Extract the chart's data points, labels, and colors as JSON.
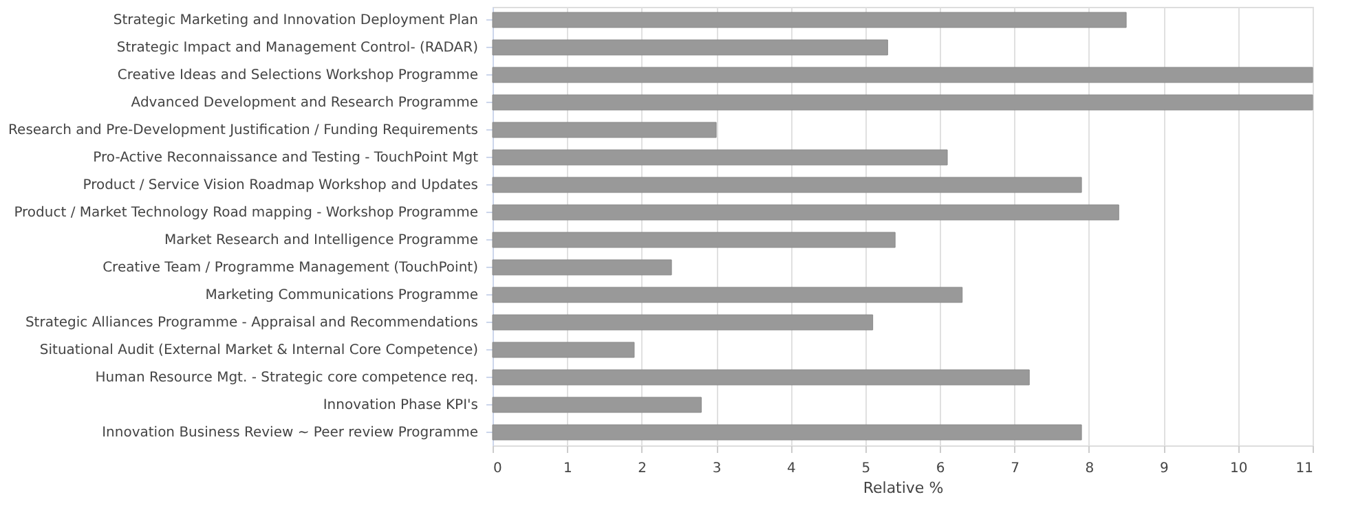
{
  "chart_data": {
    "type": "bar",
    "orientation": "horizontal",
    "xlabel": "Relative %",
    "categories": [
      "Strategic Marketing and Innovation Deployment Plan",
      "Strategic Impact and Management Control- (RADAR)",
      "Creative Ideas and Selections Workshop Programme",
      "Advanced Development and Research Programme",
      "Research and Pre-Development Justification / Funding Requirements",
      "Pro-Active Reconnaissance and Testing - TouchPoint Mgt",
      "Product / Service Vision Roadmap Workshop and Updates",
      "Product / Market Technology Road mapping - Workshop Programme",
      "Market Research and Intelligence Programme",
      "Creative Team / Programme Management (TouchPoint)",
      "Marketing Communications Programme",
      "Strategic Alliances Programme - Appraisal and Recommendations",
      "Situational Audit (External Market & Internal Core Competence)",
      "Human Resource Mgt. - Strategic core competence req.",
      "Innovation Phase KPI's",
      "Innovation Business Review ~ Peer review Programme"
    ],
    "values": [
      8.5,
      5.3,
      11,
      11,
      3.0,
      6.1,
      7.9,
      8.4,
      5.4,
      2.4,
      6.3,
      5.1,
      1.9,
      7.2,
      2.8,
      7.9
    ],
    "color": "#999999",
    "xlim": [
      0,
      11
    ],
    "xticks": [
      0,
      1,
      2,
      3,
      4,
      5,
      6,
      7,
      8,
      9,
      10,
      11
    ],
    "grid": "x"
  }
}
